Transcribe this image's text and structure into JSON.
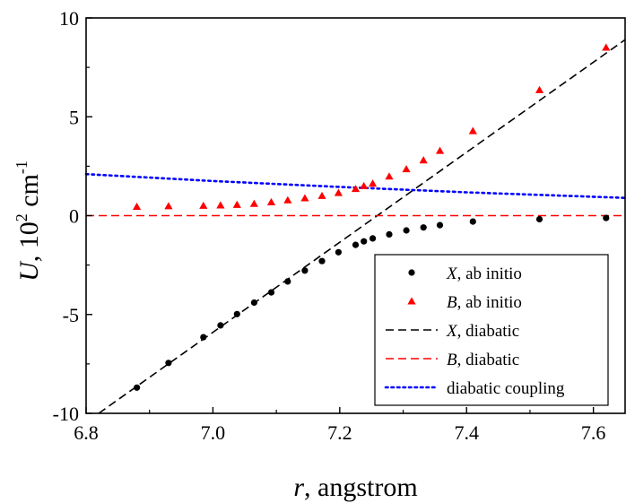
{
  "chart_data": {
    "type": "scatter",
    "x": {
      "label_var": "r",
      "label_rest": ", angstrom",
      "lim": [
        6.8,
        7.65
      ],
      "ticks": [
        6.8,
        7.0,
        7.2,
        7.4,
        7.6
      ],
      "tick_labels": [
        "6.8",
        "7.0",
        "7.2",
        "7.4",
        "7.6"
      ]
    },
    "y": {
      "label_var": "U",
      "label_mid": ", 10",
      "label_sup1": "2",
      "label_unit": " cm",
      "label_sup2": "-1",
      "lim": [
        -10,
        10
      ],
      "ticks": [
        -10,
        -5,
        0,
        5,
        10
      ],
      "tick_labels": [
        "-10",
        "-5",
        "0",
        "5",
        "10"
      ]
    },
    "legend_position": "bottom-right",
    "series": [
      {
        "name_var": "X",
        "name_rest": ", ab initio",
        "kind": "points",
        "marker": "circle",
        "color": "#000000",
        "points": [
          [
            6.88,
            -8.7
          ],
          [
            6.93,
            -7.45
          ],
          [
            6.985,
            -6.15
          ],
          [
            7.012,
            -5.55
          ],
          [
            7.038,
            -4.98
          ],
          [
            7.065,
            -4.4
          ],
          [
            7.092,
            -3.88
          ],
          [
            7.118,
            -3.33
          ],
          [
            7.145,
            -2.78
          ],
          [
            7.172,
            -2.3
          ],
          [
            7.198,
            -1.85
          ],
          [
            7.225,
            -1.48
          ],
          [
            7.238,
            -1.3
          ],
          [
            7.252,
            -1.15
          ],
          [
            7.278,
            -0.95
          ],
          [
            7.305,
            -0.75
          ],
          [
            7.332,
            -0.6
          ],
          [
            7.358,
            -0.48
          ],
          [
            7.41,
            -0.3
          ],
          [
            7.515,
            -0.18
          ],
          [
            7.62,
            -0.12
          ]
        ]
      },
      {
        "name_var": "B",
        "name_rest": ", ab initio",
        "kind": "points",
        "marker": "triangle",
        "color": "#ff0000",
        "points": [
          [
            6.88,
            0.45
          ],
          [
            6.93,
            0.48
          ],
          [
            6.985,
            0.5
          ],
          [
            7.012,
            0.52
          ],
          [
            7.038,
            0.55
          ],
          [
            7.065,
            0.6
          ],
          [
            7.092,
            0.68
          ],
          [
            7.118,
            0.78
          ],
          [
            7.145,
            0.88
          ],
          [
            7.172,
            1.0
          ],
          [
            7.198,
            1.15
          ],
          [
            7.225,
            1.35
          ],
          [
            7.238,
            1.5
          ],
          [
            7.252,
            1.62
          ],
          [
            7.278,
            1.98
          ],
          [
            7.305,
            2.35
          ],
          [
            7.332,
            2.8
          ],
          [
            7.358,
            3.28
          ],
          [
            7.41,
            4.28
          ],
          [
            7.515,
            6.35
          ],
          [
            7.62,
            8.5
          ]
        ]
      },
      {
        "name_var": "X",
        "name_rest": ", diabatic",
        "kind": "line",
        "dash": "dashed",
        "color": "#000000",
        "points": [
          [
            6.82,
            -10.0
          ],
          [
            7.65,
            8.9
          ]
        ]
      },
      {
        "name_var": "B",
        "name_rest": ", diabatic",
        "kind": "line",
        "dash": "dashed",
        "color": "#ff0000",
        "points": [
          [
            6.8,
            0.0
          ],
          [
            7.65,
            0.0
          ]
        ]
      },
      {
        "name_var": "",
        "name_rest": "diabatic coupling",
        "kind": "line",
        "dash": "dotted",
        "color": "#0000ff",
        "points": [
          [
            6.8,
            2.1
          ],
          [
            7.0,
            1.75
          ],
          [
            7.2,
            1.45
          ],
          [
            7.4,
            1.18
          ],
          [
            7.65,
            0.9
          ]
        ]
      }
    ]
  }
}
